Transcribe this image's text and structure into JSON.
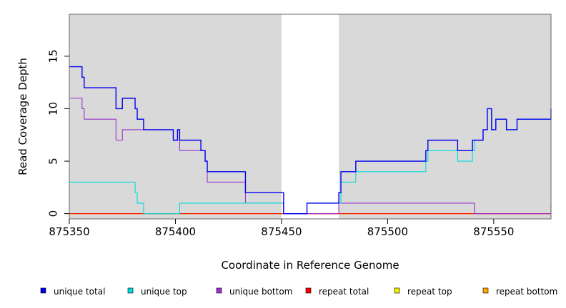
{
  "chart_data": {
    "type": "line",
    "title": "",
    "xlabel": "Coordinate in Reference Genome",
    "ylabel": "Read Coverage Depth",
    "xlim": [
      875350,
      875577
    ],
    "ylim": [
      -0.5,
      19
    ],
    "x_ticks": [
      875350,
      875400,
      875450,
      875500,
      875550
    ],
    "y_ticks": [
      0,
      5,
      10,
      15
    ],
    "grid": false,
    "legend_position": "bottom",
    "shaded_regions": [
      {
        "x0": 875350,
        "x1": 875450,
        "color": "#d9d9d9"
      },
      {
        "x0": 875477,
        "x1": 875577,
        "color": "#d9d9d9"
      }
    ],
    "series": [
      {
        "name": "unique total",
        "color": "#0000ee",
        "x": [
          875350,
          875356,
          875357,
          875372,
          875373,
          875375,
          875381,
          875382,
          875385,
          875399,
          875401,
          875402,
          875412,
          875414,
          875415,
          875433,
          875451,
          875452,
          875462,
          875477,
          875478,
          875485,
          875518,
          875519,
          875533,
          875540,
          875541,
          875545,
          875547,
          875549,
          875551,
          875556,
          875561,
          875577
        ],
        "y": [
          14,
          13,
          12,
          10,
          10,
          11,
          10,
          9,
          8,
          7,
          8,
          7,
          6,
          5,
          4,
          2,
          0,
          0,
          1,
          2,
          4,
          5,
          6,
          7,
          6,
          7,
          7,
          8,
          10,
          8,
          9,
          8,
          9,
          10
        ]
      },
      {
        "name": "unique top",
        "color": "#00dddd",
        "x": [
          875350,
          875381,
          875382,
          875385,
          875402,
          875451,
          875452,
          875462,
          875477,
          875478,
          875485,
          875518,
          875519,
          875533,
          875540,
          875541,
          875545,
          875547,
          875549,
          875551,
          875556,
          875561,
          875577
        ],
        "y": [
          3,
          2,
          1,
          0,
          1,
          0,
          0,
          1,
          1,
          3,
          4,
          5,
          6,
          5,
          6,
          7,
          8,
          10,
          8,
          9,
          8,
          9,
          9
        ]
      },
      {
        "name": "unique bottom",
        "color": "#9932cc",
        "x": [
          875350,
          875356,
          875357,
          875372,
          875373,
          875375,
          875399,
          875401,
          875402,
          875412,
          875414,
          875415,
          875433,
          875451,
          875477,
          875541,
          875577
        ],
        "y": [
          11,
          10,
          9,
          7,
          7,
          8,
          7,
          8,
          6,
          6,
          5,
          3,
          1,
          0,
          1,
          0,
          1
        ]
      },
      {
        "name": "repeat total",
        "color": "#ff0000",
        "x": [
          875350,
          875577
        ],
        "y": [
          0,
          0
        ]
      },
      {
        "name": "repeat top",
        "color": "#eeee00",
        "x": [
          875350,
          875577
        ],
        "y": [
          0,
          0
        ]
      },
      {
        "name": "repeat bottom",
        "color": "#ffa500",
        "x": [
          875350,
          875577
        ],
        "y": [
          0,
          0
        ]
      }
    ]
  }
}
